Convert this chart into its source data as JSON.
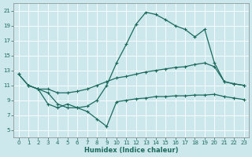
{
  "xlabel": "Humidex (Indice chaleur)",
  "xlim": [
    -0.5,
    23.5
  ],
  "ylim": [
    4,
    22
  ],
  "xticks": [
    0,
    1,
    2,
    3,
    4,
    5,
    6,
    7,
    8,
    9,
    10,
    11,
    12,
    13,
    14,
    15,
    16,
    17,
    18,
    19,
    20,
    21,
    22,
    23
  ],
  "yticks": [
    5,
    7,
    9,
    11,
    13,
    15,
    17,
    19,
    21
  ],
  "bg_color": "#cde8ec",
  "line_color": "#1a6b5e",
  "line1_x": [
    0,
    1,
    2,
    3,
    4,
    5,
    6,
    7,
    8,
    9,
    10,
    11,
    12,
    13,
    14,
    15,
    16,
    17,
    18,
    19,
    20,
    21,
    22,
    23
  ],
  "line1_y": [
    12.5,
    11.0,
    10.5,
    10.5,
    10.0,
    10.0,
    10.2,
    10.5,
    11.0,
    11.5,
    12.0,
    12.2,
    12.5,
    12.8,
    13.0,
    13.2,
    13.4,
    13.5,
    13.8,
    14.0,
    13.5,
    11.5,
    11.2,
    11.0
  ],
  "line2_x": [
    0,
    1,
    2,
    3,
    4,
    5,
    6,
    7,
    8,
    9,
    10,
    11,
    12,
    13,
    14,
    15,
    16,
    17,
    18,
    19,
    20,
    21,
    22,
    23
  ],
  "line2_y": [
    12.5,
    11.0,
    10.5,
    10.0,
    8.5,
    8.0,
    8.0,
    8.2,
    9.0,
    11.0,
    14.0,
    16.5,
    19.2,
    20.8,
    20.5,
    19.8,
    19.0,
    18.5,
    17.5,
    18.5,
    14.0,
    11.5,
    11.2,
    11.0
  ],
  "line3_x": [
    1,
    2,
    3,
    4,
    5,
    6,
    7,
    8,
    9,
    10,
    11,
    12,
    13,
    14,
    15,
    16,
    17,
    18,
    19,
    20,
    21,
    22,
    23
  ],
  "line3_y": [
    11.0,
    10.5,
    8.5,
    8.0,
    8.5,
    8.0,
    7.5,
    6.5,
    5.5,
    8.8,
    9.0,
    9.2,
    9.3,
    9.5,
    9.5,
    9.6,
    9.6,
    9.7,
    9.7,
    9.8,
    9.5,
    9.3,
    9.1
  ]
}
